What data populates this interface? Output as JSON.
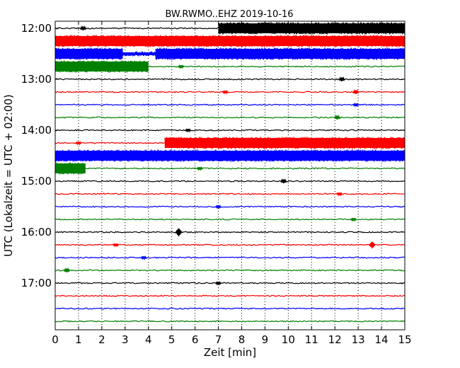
{
  "chart_data": {
    "type": "line",
    "title": "BW.RWMO..EHZ 2019-10-16",
    "xlabel": "Zeit  [min]",
    "ylabel": "UTC (Lokalzeit = UTC + 02:00)",
    "xlim": [
      0,
      15
    ],
    "x_ticks": [
      "0",
      "1",
      "2",
      "3",
      "4",
      "5",
      "6",
      "7",
      "8",
      "9",
      "10",
      "11",
      "12",
      "13",
      "14",
      "15"
    ],
    "y_ticks": [
      "12:00",
      "13:00",
      "14:00",
      "15:00",
      "16:00",
      "17:00"
    ],
    "grid": "vertical dotted lines at each minute",
    "row_interval_minutes": 15,
    "start_time": "12:00",
    "colors": [
      "#000000",
      "#ff0000",
      "#0000ff",
      "#008000"
    ],
    "rows": [
      {
        "time": "12:00",
        "color": "#000000",
        "segments": [
          {
            "start": 7.0,
            "end": 15,
            "amp": 7
          }
        ],
        "events": [
          {
            "x": 1.2,
            "amp": 3
          }
        ]
      },
      {
        "time": "12:15",
        "color": "#ff0000",
        "segments": [
          {
            "start": 0,
            "end": 15,
            "amp": 7
          }
        ],
        "events": []
      },
      {
        "time": "12:30",
        "color": "#0000ff",
        "segments": [
          {
            "start": 0,
            "end": 2.9,
            "amp": 7
          },
          {
            "start": 2.9,
            "end": 4.3,
            "amp": 2
          },
          {
            "start": 4.3,
            "end": 15,
            "amp": 7
          }
        ],
        "events": []
      },
      {
        "time": "12:45",
        "color": "#008000",
        "segments": [
          {
            "start": 0,
            "end": 4.0,
            "amp": 7
          }
        ],
        "events": [
          {
            "x": 5.4,
            "amp": 2
          }
        ]
      },
      {
        "time": "13:00",
        "color": "#000000",
        "segments": [],
        "events": [
          {
            "x": 12.3,
            "amp": 3
          }
        ]
      },
      {
        "time": "13:15",
        "color": "#ff0000",
        "segments": [],
        "events": [
          {
            "x": 7.3,
            "amp": 2
          },
          {
            "x": 12.9,
            "amp": 3
          }
        ]
      },
      {
        "time": "13:30",
        "color": "#0000ff",
        "segments": [],
        "events": [
          {
            "x": 12.9,
            "amp": 2
          }
        ]
      },
      {
        "time": "13:45",
        "color": "#008000",
        "segments": [],
        "events": [
          {
            "x": 12.1,
            "amp": 3
          }
        ]
      },
      {
        "time": "14:00",
        "color": "#000000",
        "segments": [],
        "events": [
          {
            "x": 5.7,
            "amp": 2
          }
        ]
      },
      {
        "time": "14:15",
        "color": "#ff0000",
        "segments": [
          {
            "start": 4.7,
            "end": 15,
            "amp": 7
          }
        ],
        "events": [
          {
            "x": 1.0,
            "amp": 2
          }
        ]
      },
      {
        "time": "14:30",
        "color": "#0000ff",
        "segments": [
          {
            "start": 0,
            "end": 15,
            "amp": 7
          }
        ],
        "events": []
      },
      {
        "time": "14:45",
        "color": "#008000",
        "segments": [
          {
            "start": 0,
            "end": 1.3,
            "amp": 7
          }
        ],
        "events": [
          {
            "x": 6.2,
            "amp": 2
          }
        ]
      },
      {
        "time": "15:00",
        "color": "#000000",
        "segments": [],
        "events": [
          {
            "x": 9.8,
            "amp": 3
          }
        ]
      },
      {
        "time": "15:15",
        "color": "#ff0000",
        "segments": [],
        "events": [
          {
            "x": 12.2,
            "amp": 2
          }
        ]
      },
      {
        "time": "15:30",
        "color": "#0000ff",
        "segments": [],
        "events": [
          {
            "x": 7.0,
            "amp": 2
          }
        ]
      },
      {
        "time": "15:45",
        "color": "#008000",
        "segments": [],
        "events": [
          {
            "x": 12.8,
            "amp": 2
          }
        ]
      },
      {
        "time": "16:00",
        "color": "#000000",
        "segments": [],
        "events": [
          {
            "x": 5.3,
            "amp": 6
          }
        ]
      },
      {
        "time": "16:15",
        "color": "#ff0000",
        "segments": [],
        "events": [
          {
            "x": 13.6,
            "amp": 5
          },
          {
            "x": 2.6,
            "amp": 2
          }
        ]
      },
      {
        "time": "16:30",
        "color": "#0000ff",
        "segments": [],
        "events": [
          {
            "x": 3.8,
            "amp": 2
          }
        ]
      },
      {
        "time": "16:45",
        "color": "#008000",
        "segments": [],
        "events": [
          {
            "x": 0.5,
            "amp": 3
          }
        ]
      },
      {
        "time": "17:00",
        "color": "#000000",
        "segments": [],
        "events": [
          {
            "x": 7.0,
            "amp": 2
          }
        ]
      },
      {
        "time": "17:15",
        "color": "#ff0000",
        "segments": [],
        "events": []
      },
      {
        "time": "17:30",
        "color": "#0000ff",
        "segments": [],
        "events": []
      },
      {
        "time": "17:45",
        "color": "#008000",
        "segments": [],
        "events": []
      }
    ]
  }
}
